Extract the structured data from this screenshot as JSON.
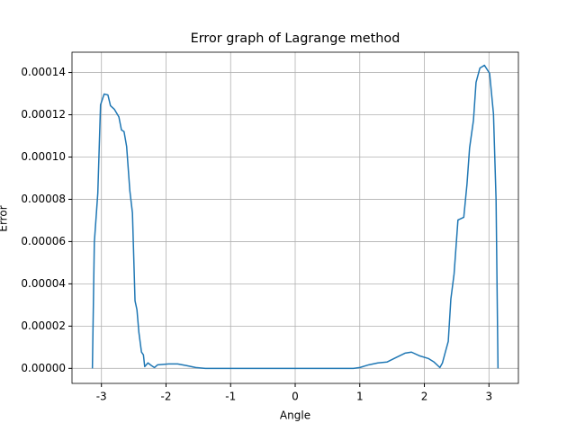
{
  "chart_data": {
    "type": "line",
    "title": "Error graph of Lagrange method",
    "x_label": "Angle",
    "y_label": "Error",
    "x": [
      -3.14,
      -3.11,
      -3.056,
      -3.014,
      -2.958,
      -2.9,
      -2.86,
      -2.8,
      -2.73,
      -2.69,
      -2.65,
      -2.61,
      -2.56,
      -2.52,
      -2.48,
      -2.45,
      -2.42,
      -2.38,
      -2.35,
      -2.33,
      -2.28,
      -2.225,
      -2.18,
      -2.13,
      -1.96,
      -1.82,
      -1.68,
      -1.54,
      -1.39,
      -1.0,
      0,
      0.9,
      1.0,
      1.14,
      1.28,
      1.42,
      1.56,
      1.7,
      1.8,
      1.92,
      2.06,
      2.15,
      2.24,
      2.28,
      2.32,
      2.37,
      2.41,
      2.46,
      2.52,
      2.61,
      2.66,
      2.7,
      2.76,
      2.8,
      2.86,
      2.93,
      3.01,
      3.07,
      3.11,
      3.14
    ],
    "values": [
      0,
      5.96e-05,
      8.3e-05,
      0.0001247,
      0.0001298,
      0.0001294,
      0.0001243,
      0.0001226,
      0.000119,
      0.0001128,
      0.000112,
      0.000105,
      8.4e-05,
      7.36e-05,
      3.2e-05,
      2.77e-05,
      1.7e-05,
      7.7e-06,
      6.4e-06,
      8.5e-07,
      2.6e-06,
      1.3e-06,
      4e-07,
      1.7e-06,
      2.1e-06,
      2.1e-06,
      1.3e-06,
      4e-07,
      0,
      0,
      0,
      0,
      4e-07,
      1.7e-06,
      2.6e-06,
      3e-06,
      5.1e-06,
      7.2e-06,
      7.7e-06,
      6e-06,
      4.7e-06,
      3e-06,
      4e-07,
      2.6e-06,
      7.2e-06,
      1.28e-05,
      3.28e-05,
      4.47e-05,
      7.02e-05,
      7.15e-05,
      8.72e-05,
      0.0001043,
      0.0001174,
      0.0001353,
      0.0001421,
      0.0001434,
      0.0001396,
      0.0001204,
      8e-05,
      0
    ],
    "color": "#1f77b4",
    "xlim": [
      -3.4558,
      3.4558
    ],
    "xticks": [
      -3,
      -2,
      -1,
      0,
      1,
      2,
      3
    ],
    "ylim": [
      -7.1e-06,
      0.0001496
    ],
    "yticks": [
      {
        "value": 0,
        "label": "0.00000"
      },
      {
        "value": 2e-05,
        "label": "0.00002"
      },
      {
        "value": 4e-05,
        "label": "0.00004"
      },
      {
        "value": 6e-05,
        "label": "0.00006"
      },
      {
        "value": 8e-05,
        "label": "0.00008"
      },
      {
        "value": 0.0001,
        "label": "0.00010"
      },
      {
        "value": 0.00012,
        "label": "0.00012"
      },
      {
        "value": 0.00014,
        "label": "0.00014"
      }
    ],
    "grid": true
  }
}
